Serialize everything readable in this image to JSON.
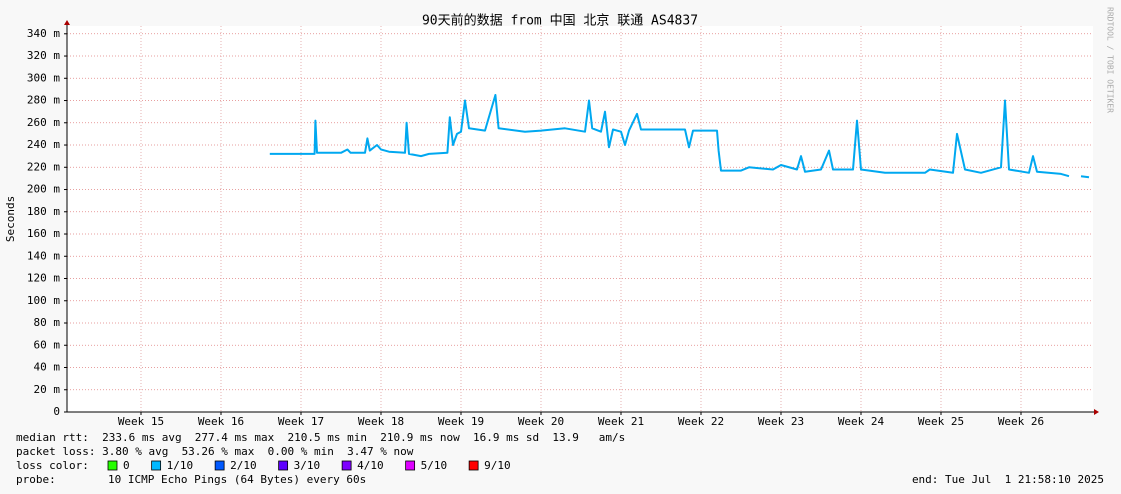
{
  "chart_data": {
    "type": "line",
    "title": "90天前的数据 from 中国 北京 联通 AS4837",
    "ylabel": "Seconds",
    "watermark": "RRDTOOL / TOBI OETIKER",
    "color": "#00a8f0",
    "grid": true,
    "xlim": [
      14.075,
      26.9
    ],
    "xticks": [
      {
        "value": 15,
        "label": "Week 15"
      },
      {
        "value": 16,
        "label": "Week 16"
      },
      {
        "value": 17,
        "label": "Week 17"
      },
      {
        "value": 18,
        "label": "Week 18"
      },
      {
        "value": 19,
        "label": "Week 19"
      },
      {
        "value": 20,
        "label": "Week 20"
      },
      {
        "value": 21,
        "label": "Week 21"
      },
      {
        "value": 22,
        "label": "Week 22"
      },
      {
        "value": 23,
        "label": "Week 23"
      },
      {
        "value": 24,
        "label": "Week 24"
      },
      {
        "value": 25,
        "label": "Week 25"
      },
      {
        "value": 26,
        "label": "Week 26"
      }
    ],
    "ylim": [
      0,
      0.347
    ],
    "yticks": [
      0,
      {
        "value": 0.02,
        "label": "20 m"
      },
      {
        "value": 0.04,
        "label": "40 m"
      },
      {
        "value": 0.06,
        "label": "60 m"
      },
      {
        "value": 0.08,
        "label": "80 m"
      },
      {
        "value": 0.1,
        "label": "100 m"
      },
      {
        "value": 0.12,
        "label": "120 m"
      },
      {
        "value": 0.14,
        "label": "140 m"
      },
      {
        "value": 0.16,
        "label": "160 m"
      },
      {
        "value": 0.18,
        "label": "180 m"
      },
      {
        "value": 0.2,
        "label": "200 m"
      },
      {
        "value": 0.22,
        "label": "220 m"
      },
      {
        "value": 0.24,
        "label": "240 m"
      },
      {
        "value": 0.26,
        "label": "260 m"
      },
      {
        "value": 0.28,
        "label": "280 m"
      },
      {
        "value": 0.3,
        "label": "300 m"
      },
      {
        "value": 0.32,
        "label": "320 m"
      },
      {
        "value": 0.34,
        "label": "340 m"
      }
    ],
    "x": [
      16.61,
      17.0,
      17.17,
      17.18,
      17.2,
      17.5,
      17.58,
      17.62,
      17.8,
      17.83,
      17.86,
      17.95,
      18.0,
      18.1,
      18.3,
      18.32,
      18.35,
      18.5,
      18.6,
      18.83,
      18.86,
      18.9,
      18.95,
      19.0,
      19.05,
      19.1,
      19.3,
      19.43,
      19.47,
      19.8,
      20.0,
      20.3,
      20.55,
      20.6,
      20.64,
      20.75,
      20.8,
      20.85,
      20.9,
      21.0,
      21.05,
      21.1,
      21.2,
      21.25,
      21.8,
      21.85,
      21.9,
      22.2,
      22.22,
      22.25,
      22.5,
      22.6,
      22.9,
      23.0,
      23.2,
      23.25,
      23.3,
      23.5,
      23.6,
      23.65,
      23.9,
      23.95,
      24.0,
      24.3,
      24.8,
      24.86,
      25.15,
      25.2,
      25.3,
      25.5,
      25.75,
      25.8,
      25.85,
      26.1,
      26.15,
      26.2,
      26.5,
      26.6,
      26.68,
      26.75,
      26.85
    ],
    "values": [
      0.232,
      0.232,
      0.232,
      0.262,
      0.233,
      0.233,
      0.236,
      0.233,
      0.233,
      0.246,
      0.235,
      0.24,
      0.236,
      0.234,
      0.233,
      0.26,
      0.232,
      0.23,
      0.232,
      0.233,
      0.265,
      0.24,
      0.25,
      0.252,
      0.28,
      0.255,
      0.253,
      0.285,
      0.255,
      0.252,
      0.253,
      0.255,
      0.252,
      0.28,
      0.255,
      0.252,
      0.27,
      0.238,
      0.254,
      0.252,
      0.24,
      0.253,
      0.268,
      0.254,
      0.254,
      0.238,
      0.253,
      0.253,
      0.235,
      0.217,
      0.217,
      0.22,
      0.218,
      0.222,
      0.218,
      0.23,
      0.216,
      0.218,
      0.235,
      0.218,
      0.218,
      0.262,
      0.218,
      0.215,
      0.215,
      0.218,
      0.215,
      0.25,
      0.218,
      0.215,
      0.22,
      0.28,
      0.218,
      0.215,
      0.23,
      0.216,
      0.214,
      0.212,
      null,
      0.212,
      0.211
    ],
    "footer_lines": [
      "median rtt:  233.6 ms avg  277.4 ms max  210.5 ms min  210.9 ms now  16.9 ms sd  13.9   am/s",
      "packet loss: 3.80 % avg  53.26 % max  0.00 % min  3.47 % now"
    ],
    "loss_label": "loss color:",
    "loss_colors": [
      {
        "name": "0",
        "color": "#26ff00"
      },
      {
        "name": "1/10",
        "color": "#00b8ff"
      },
      {
        "name": "2/10",
        "color": "#0059ff"
      },
      {
        "name": "3/10",
        "color": "#5e00ff"
      },
      {
        "name": "4/10",
        "color": "#7e00ff"
      },
      {
        "name": "5/10",
        "color": "#dd00ff"
      },
      {
        "name": "9/10",
        "color": "#ff0000"
      }
    ],
    "probe_label": "probe:",
    "probe": "10 ICMP Echo Pings (64 Bytes) every 60s",
    "end": "end: Tue Jul  1 21:58:10 2025"
  }
}
